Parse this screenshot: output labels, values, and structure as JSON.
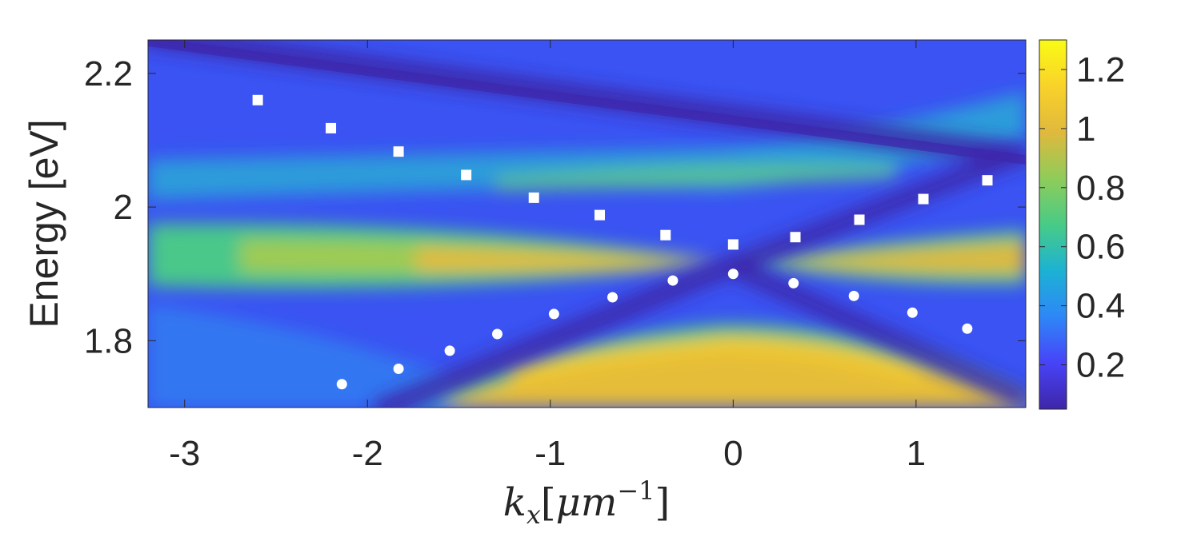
{
  "chart_data": {
    "type": "heatmap",
    "xlabel": {
      "base": "k",
      "sub": "x",
      "bracket_open": "[",
      "unit": "μm",
      "sup": "−1",
      "bracket_close": "]"
    },
    "ylabel": "Energy [eV]",
    "xlim": [
      -3.2,
      1.6
    ],
    "ylim": [
      1.7,
      2.25
    ],
    "xticks": [
      {
        "value": -3,
        "label": "-3"
      },
      {
        "value": -2,
        "label": "-2"
      },
      {
        "value": -1,
        "label": "-1"
      },
      {
        "value": 0,
        "label": "0"
      },
      {
        "value": 1,
        "label": "1"
      }
    ],
    "yticks": [
      {
        "value": 1.8,
        "label": "1.8"
      },
      {
        "value": 2.0,
        "label": "2"
      },
      {
        "value": 2.2,
        "label": "2.2"
      }
    ],
    "colorbar": {
      "range": [
        0.05,
        1.3
      ],
      "ticks": [
        {
          "value": 0.2,
          "label": "0.2"
        },
        {
          "value": 0.4,
          "label": "0.4"
        },
        {
          "value": 0.6,
          "label": "0.6"
        },
        {
          "value": 0.8,
          "label": "0.8"
        },
        {
          "value": 1.0,
          "label": "1"
        },
        {
          "value": 1.2,
          "label": "1.2"
        }
      ],
      "colormap": [
        "#3e26a8",
        "#4743f8",
        "#2e87f7",
        "#1cb2d3",
        "#48cb86",
        "#8fcc5a",
        "#e0b93d",
        "#f9d22a",
        "#f9fb15"
      ]
    },
    "series": [
      {
        "marker": "square",
        "color": "#ffffff",
        "points": [
          [
            -2.6,
            2.16
          ],
          [
            -2.2,
            2.118
          ],
          [
            -1.83,
            2.083
          ],
          [
            -1.46,
            2.048
          ],
          [
            -1.09,
            2.014
          ],
          [
            -0.73,
            1.988
          ],
          [
            -0.37,
            1.958
          ],
          [
            0.0,
            1.944
          ],
          [
            0.34,
            1.955
          ],
          [
            0.69,
            1.981
          ],
          [
            1.04,
            2.012
          ],
          [
            1.39,
            2.04
          ]
        ]
      },
      {
        "marker": "circle",
        "color": "#ffffff",
        "points": [
          [
            -2.14,
            1.735
          ],
          [
            -1.83,
            1.758
          ],
          [
            -1.55,
            1.785
          ],
          [
            -1.29,
            1.81
          ],
          [
            -0.98,
            1.84
          ],
          [
            -0.66,
            1.865
          ],
          [
            -0.33,
            1.89
          ],
          [
            0.0,
            1.9
          ],
          [
            0.33,
            1.886
          ],
          [
            0.66,
            1.867
          ],
          [
            0.98,
            1.842
          ],
          [
            1.28,
            1.818
          ]
        ]
      }
    ]
  }
}
